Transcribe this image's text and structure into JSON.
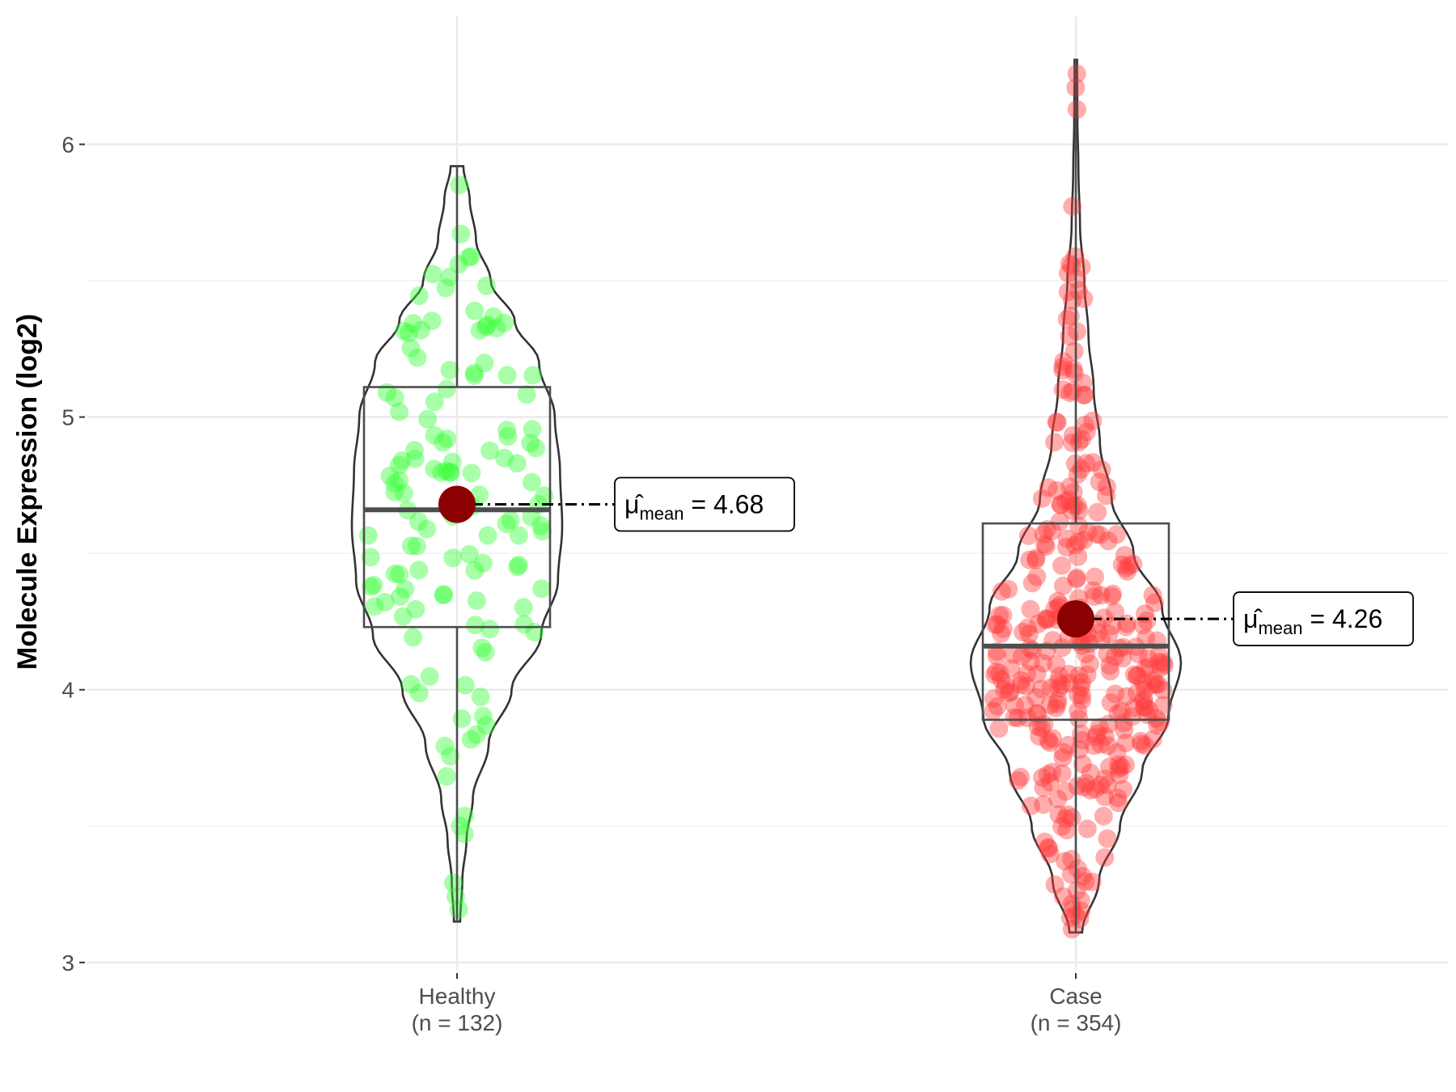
{
  "chart_data": {
    "type": "violin",
    "ylabel": "Molecule Expression (log2)",
    "xlabel": "",
    "ylim": [
      2.97,
      6.47
    ],
    "yticks": [
      3,
      4,
      5,
      6
    ],
    "grid": true,
    "groups": [
      {
        "name": "Healthy",
        "n_label": "(n = 132)",
        "n": 132,
        "point_color": "#33FF33",
        "min": 3.15,
        "q1": 4.23,
        "median": 4.66,
        "q3": 5.11,
        "max": 5.92,
        "mean": 4.68,
        "mean_label": "4.68",
        "density": [
          [
            3.15,
            0.03
          ],
          [
            3.3,
            0.05
          ],
          [
            3.45,
            0.09
          ],
          [
            3.6,
            0.15
          ],
          [
            3.8,
            0.3
          ],
          [
            4.0,
            0.52
          ],
          [
            4.2,
            0.8
          ],
          [
            4.4,
            0.96
          ],
          [
            4.6,
            1.0
          ],
          [
            4.8,
            0.98
          ],
          [
            5.0,
            0.93
          ],
          [
            5.2,
            0.78
          ],
          [
            5.35,
            0.55
          ],
          [
            5.5,
            0.32
          ],
          [
            5.65,
            0.18
          ],
          [
            5.8,
            0.12
          ],
          [
            5.92,
            0.06
          ]
        ]
      },
      {
        "name": "Case",
        "n_label": "(n = 354)",
        "n": 354,
        "point_color": "#FF3B3B",
        "min": 3.11,
        "q1": 3.89,
        "median": 4.16,
        "q3": 4.61,
        "max": 6.31,
        "mean": 4.26,
        "mean_label": "4.26",
        "density": [
          [
            3.11,
            0.06
          ],
          [
            3.3,
            0.22
          ],
          [
            3.5,
            0.42
          ],
          [
            3.7,
            0.63
          ],
          [
            3.9,
            0.88
          ],
          [
            4.1,
            1.0
          ],
          [
            4.3,
            0.82
          ],
          [
            4.5,
            0.55
          ],
          [
            4.7,
            0.34
          ],
          [
            4.9,
            0.23
          ],
          [
            5.1,
            0.17
          ],
          [
            5.3,
            0.12
          ],
          [
            5.5,
            0.08
          ],
          [
            5.7,
            0.04
          ],
          [
            5.9,
            0.025
          ],
          [
            6.1,
            0.015
          ],
          [
            6.31,
            0.012
          ]
        ]
      }
    ],
    "annotation_symbol": "μ̂",
    "annotation_subscript": "mean"
  }
}
